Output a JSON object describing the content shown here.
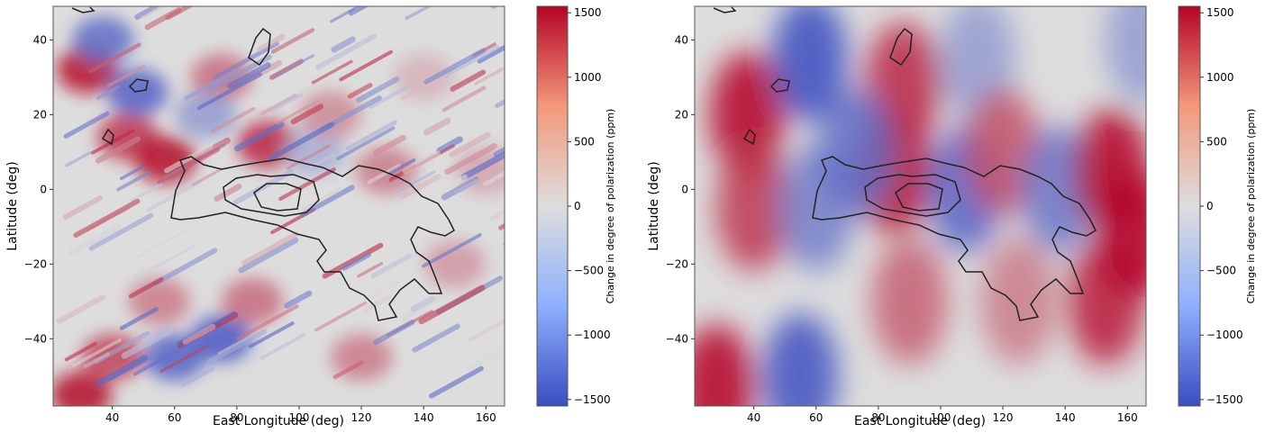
{
  "chart_data": [
    {
      "type": "heatmap",
      "title": "",
      "xlabel": "East Longitude (deg)",
      "ylabel": "Latitude (deg)",
      "xlim": [
        21,
        166
      ],
      "ylim": [
        -58,
        49
      ],
      "xticks": [
        40,
        60,
        80,
        100,
        120,
        140,
        160
      ],
      "yticks": [
        -40,
        -20,
        0,
        20,
        40
      ],
      "colorbar": {
        "label": "Change in degree of polarization (ppm)",
        "range": [
          -1550,
          1550
        ],
        "ticks": [
          -1500,
          -1000,
          -500,
          0,
          500,
          1000,
          1500
        ],
        "colormap": "coolwarm",
        "low_color": "#3b4cc0",
        "mid_color": "#dddddd",
        "high_color": "#b40426"
      },
      "field": "high-frequency, diagonal streaks",
      "blobs": [
        {
          "lon": 32,
          "lat": 32,
          "value": 1500
        },
        {
          "lon": 45,
          "lat": 14,
          "value": 1200
        },
        {
          "lon": 57,
          "lat": 8,
          "value": 1500
        },
        {
          "lon": 90,
          "lat": 12,
          "value": 1300
        },
        {
          "lon": 75,
          "lat": 30,
          "value": 800
        },
        {
          "lon": 48,
          "lat": 26,
          "value": -1300
        },
        {
          "lon": 37,
          "lat": 40,
          "value": -1200
        },
        {
          "lon": 70,
          "lat": 20,
          "value": -700
        },
        {
          "lon": 105,
          "lat": 10,
          "value": -500
        },
        {
          "lon": 110,
          "lat": 20,
          "value": 600
        },
        {
          "lon": 128,
          "lat": 5,
          "value": 700
        },
        {
          "lon": 30,
          "lat": -55,
          "value": 1500
        },
        {
          "lon": 40,
          "lat": -45,
          "value": 1100
        },
        {
          "lon": 60,
          "lat": -45,
          "value": -1300
        },
        {
          "lon": 75,
          "lat": -40,
          "value": -1400
        },
        {
          "lon": 55,
          "lat": -30,
          "value": 700
        },
        {
          "lon": 85,
          "lat": -30,
          "value": 800
        },
        {
          "lon": 120,
          "lat": -45,
          "value": 700
        },
        {
          "lon": 150,
          "lat": -20,
          "value": 500
        },
        {
          "lon": 160,
          "lat": 5,
          "value": 400
        },
        {
          "lon": 140,
          "lat": 30,
          "value": 300
        }
      ]
    },
    {
      "type": "heatmap",
      "title": "",
      "xlabel": "East Longitude (deg)",
      "ylabel": "Latitude (deg)",
      "xlim": [
        21,
        166
      ],
      "ylim": [
        -58,
        49
      ],
      "xticks": [
        40,
        60,
        80,
        100,
        120,
        140,
        160
      ],
      "yticks": [
        -40,
        -20,
        0,
        20,
        40
      ],
      "colorbar": {
        "label": "Change in degree of polarization (ppm)",
        "range": [
          -1550,
          1550
        ],
        "ticks": [
          -1500,
          -1000,
          -500,
          0,
          500,
          1000,
          1500
        ],
        "colormap": "coolwarm",
        "low_color": "#3b4cc0",
        "mid_color": "#dddddd",
        "high_color": "#b40426"
      },
      "field": "smooth, banded",
      "blobs": [
        {
          "lon": 38,
          "lat": 20,
          "value": 1600
        },
        {
          "lon": 40,
          "lat": -5,
          "value": 1200
        },
        {
          "lon": 28,
          "lat": -53,
          "value": 1600
        },
        {
          "lon": 58,
          "lat": 35,
          "value": -1600
        },
        {
          "lon": 60,
          "lat": -5,
          "value": -1000
        },
        {
          "lon": 55,
          "lat": -50,
          "value": -1500
        },
        {
          "lon": 85,
          "lat": 5,
          "value": 1600
        },
        {
          "lon": 88,
          "lat": 28,
          "value": 1300
        },
        {
          "lon": 90,
          "lat": -30,
          "value": 900
        },
        {
          "lon": 73,
          "lat": 10,
          "value": -1200
        },
        {
          "lon": 108,
          "lat": 0,
          "value": -1300
        },
        {
          "lon": 112,
          "lat": 35,
          "value": -700
        },
        {
          "lon": 120,
          "lat": 10,
          "value": 1000
        },
        {
          "lon": 125,
          "lat": -30,
          "value": 700
        },
        {
          "lon": 138,
          "lat": 0,
          "value": -1100
        },
        {
          "lon": 155,
          "lat": 5,
          "value": 1600
        },
        {
          "lon": 153,
          "lat": -30,
          "value": 1400
        },
        {
          "lon": 163,
          "lat": -12,
          "value": 1700
        },
        {
          "lon": 165,
          "lat": 40,
          "value": -700
        }
      ]
    }
  ]
}
